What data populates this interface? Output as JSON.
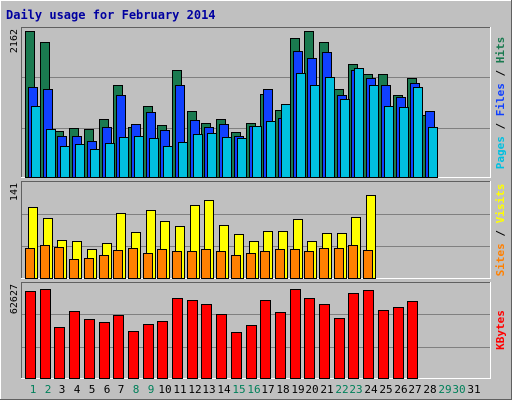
{
  "title": "Daily usage for February 2014",
  "chart_data": [
    {
      "type": "bar",
      "panel": "top",
      "ymax_label": "2162",
      "ylim": [
        0,
        2162
      ],
      "legend": [
        {
          "text": "Pages",
          "color": "#00c0e0"
        },
        {
          "sep": " / ",
          "text": "Files",
          "color": "#1040ff"
        },
        {
          "sep": " / ",
          "text": "Hits",
          "color": "#1a7a50"
        }
      ],
      "series": [
        {
          "name": "Hits",
          "color": "#1a7a50",
          "values": [
            2140,
            1990,
            670,
            720,
            710,
            850,
            1360,
            730,
            1050,
            770,
            1580,
            970,
            800,
            850,
            660,
            790,
            1220,
            980,
            2050,
            2140,
            1990,
            1300,
            1660,
            1520,
            1520,
            1200,
            1450,
            910
          ]
        },
        {
          "name": "Files",
          "color": "#1040ff",
          "values": [
            1320,
            1290,
            600,
            600,
            530,
            730,
            1210,
            780,
            950,
            690,
            1360,
            840,
            740,
            780,
            610,
            750,
            1300,
            870,
            1850,
            1750,
            1840,
            1200,
            1570,
            1460,
            1350,
            1180,
            1380,
            970
          ]
        },
        {
          "name": "Pages",
          "color": "#00c0e0",
          "values": [
            1040,
            700,
            450,
            480,
            410,
            500,
            590,
            610,
            570,
            460,
            510,
            630,
            640,
            590,
            580,
            750,
            830,
            1080,
            1530,
            1350,
            1470,
            1140,
            1610,
            1350,
            1040,
            1030,
            1330,
            740
          ]
        }
      ]
    },
    {
      "type": "bar",
      "panel": "middle",
      "ymax_label": "141",
      "ylim": [
        0,
        141
      ],
      "legend": [
        {
          "text": "Sites",
          "color": "#ff8000"
        },
        {
          "sep": " / ",
          "text": "Visits",
          "color": "#ffff00"
        }
      ],
      "series": [
        {
          "name": "Visits",
          "color": "#ffff00",
          "values": [
            107,
            90,
            57,
            55,
            44,
            53,
            97,
            69,
            102,
            86,
            78,
            110,
            117,
            79,
            66,
            56,
            71,
            70,
            89,
            55,
            68,
            67,
            91,
            124
          ]
        },
        {
          "name": "Sites",
          "color": "#ff8000",
          "values": [
            45,
            49,
            47,
            28,
            30,
            35,
            42,
            45,
            38,
            43,
            40,
            41,
            43,
            40,
            35,
            38,
            40,
            43,
            44,
            40,
            45,
            45,
            49,
            42
          ]
        }
      ]
    },
    {
      "type": "bar",
      "panel": "bottom",
      "ymax_label": "62627",
      "ylim": [
        0,
        62627
      ],
      "legend": [
        {
          "text": "KBytes",
          "color": "#ff0000"
        }
      ],
      "series": [
        {
          "name": "KBytes",
          "color": "#ff0000",
          "values": [
            58880,
            59900,
            34300,
            45100,
            40000,
            37600,
            42600,
            31900,
            36200,
            38300,
            53800,
            52700,
            49500,
            43400,
            30800,
            35600,
            52600,
            44700,
            59600,
            53700,
            50100,
            40300,
            57000,
            59300,
            45900,
            47500,
            51800
          ]
        }
      ]
    }
  ],
  "x_labels": [
    "1",
    "2",
    "3",
    "4",
    "5",
    "6",
    "7",
    "8",
    "9",
    "10",
    "11",
    "12",
    "13",
    "14",
    "15",
    "16",
    "17",
    "18",
    "19",
    "20",
    "21",
    "22",
    "23",
    "24",
    "25",
    "26",
    "27",
    "28",
    "29",
    "30",
    "31"
  ],
  "weekend_days": [
    1,
    2,
    8,
    9,
    15,
    16,
    22,
    23,
    29,
    30
  ],
  "colors": {
    "background": "#c0c0c0",
    "plot_background": "#c0c0c0",
    "day_weekday": "#000000",
    "day_weekend": "#00805a"
  }
}
